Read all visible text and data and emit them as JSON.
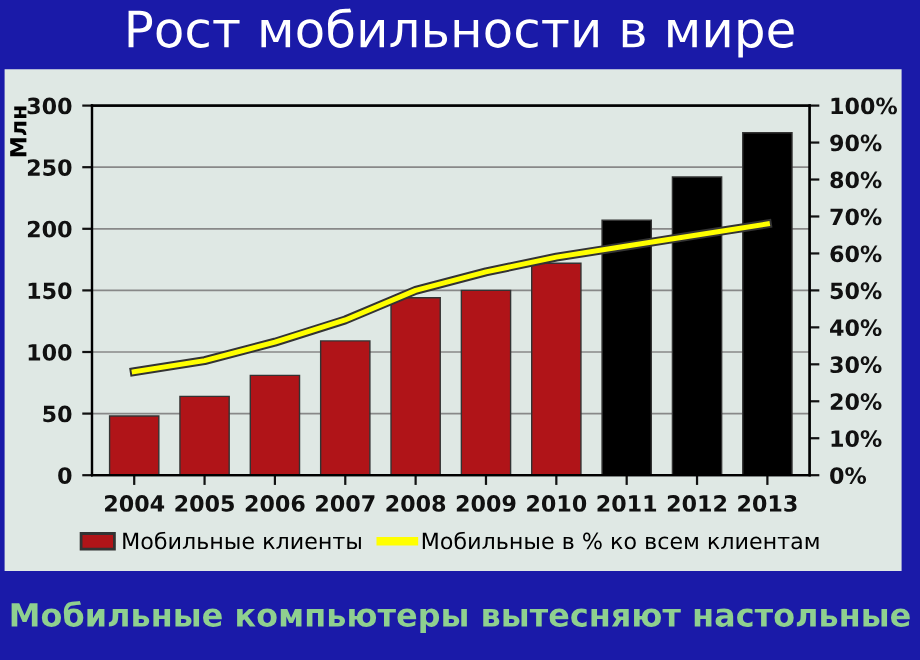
{
  "chart_data": {
    "type": "bar",
    "title": "Рост мобильности в мире",
    "ylabel": "Млн",
    "categories": [
      "2004",
      "2005",
      "2006",
      "2007",
      "2008",
      "2009",
      "2010",
      "2011",
      "2012",
      "2013"
    ],
    "series": [
      {
        "name": "Мобильные клиенты",
        "color": "#b01418",
        "colors": [
          "#b01418",
          "#b01418",
          "#b01418",
          "#b01418",
          "#b01418",
          "#b01418",
          "#b01418",
          "#000000",
          "#000000",
          "#000000"
        ],
        "values": [
          48,
          64,
          81,
          109,
          144,
          150,
          172,
          207,
          242,
          278
        ]
      },
      {
        "name": "Мобильные в % ко всем клиентам",
        "type": "line",
        "axis": "y2",
        "color": "#ffff00",
        "values": [
          28,
          31,
          36,
          42,
          50,
          55,
          59,
          62,
          65,
          68
        ]
      }
    ],
    "ylim": [
      0,
      300
    ],
    "yticks": [
      0,
      50,
      100,
      150,
      200,
      250,
      300
    ],
    "y2lim": [
      0,
      100
    ],
    "y2ticks": [
      {
        "value": 0,
        "label": "0%"
      },
      {
        "value": 10,
        "label": "10%"
      },
      {
        "value": 20,
        "label": "20%"
      },
      {
        "value": 30,
        "label": "30%"
      },
      {
        "value": 40,
        "label": "40%"
      },
      {
        "value": 50,
        "label": "50%"
      },
      {
        "value": 60,
        "label": "60%"
      },
      {
        "value": 70,
        "label": "70%"
      },
      {
        "value": 80,
        "label": "80%"
      },
      {
        "value": 90,
        "label": "90%"
      },
      {
        "value": 100,
        "label": "100%"
      }
    ],
    "grid": "y",
    "legend": "bottom",
    "marker": "none",
    "annotations": [
      "Мобильные компьютеры вытесняют настольные"
    ]
  }
}
